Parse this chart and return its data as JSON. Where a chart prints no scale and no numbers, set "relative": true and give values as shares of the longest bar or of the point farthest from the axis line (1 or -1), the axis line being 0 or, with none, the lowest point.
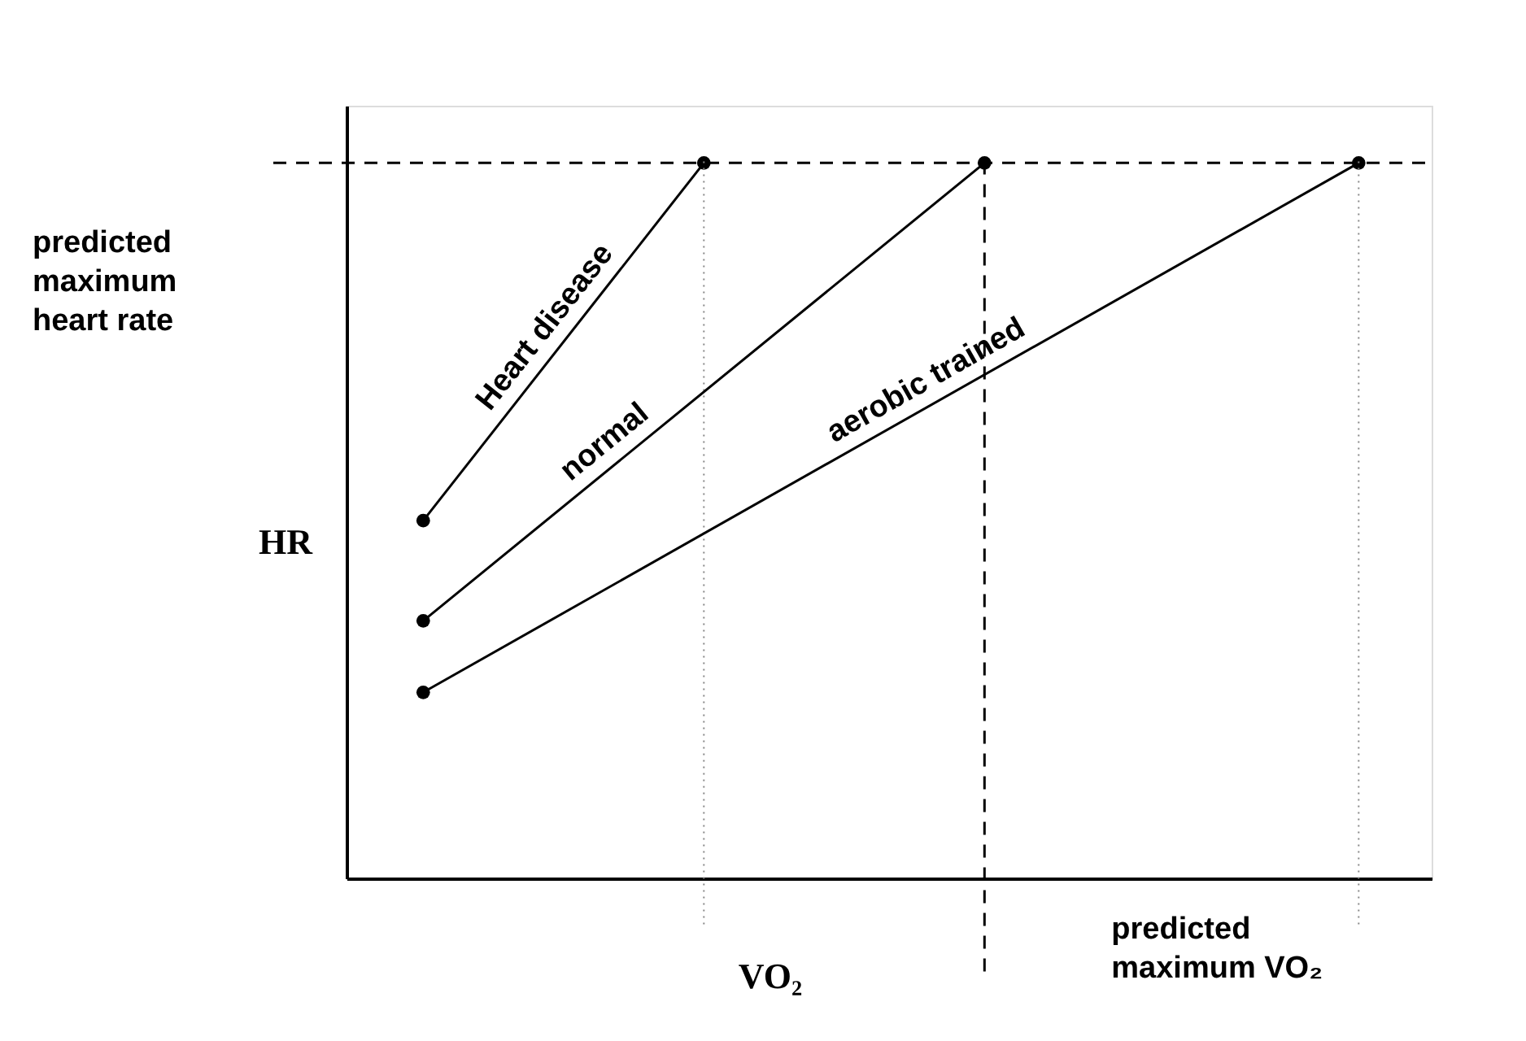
{
  "chart_data": {
    "type": "line",
    "relative": true,
    "xlabel": "VO₂",
    "ylabel": "HR",
    "grid": false,
    "marker": "circle",
    "line_style": "solid",
    "categories": [
      null,
      null,
      null,
      null,
      null,
      null,
      null,
      null,
      null,
      null,
      null
    ],
    "series": [
      {
        "name": "Heart disease",
        "color": "#000000",
        "values": [
          0.5,
          null,
          null,
          1,
          null,
          null,
          null,
          null,
          null,
          null,
          null
        ]
      },
      {
        "name": "normal",
        "color": "#000000",
        "values": [
          0.36,
          null,
          null,
          null,
          null,
          null,
          1,
          null,
          null,
          null,
          null
        ]
      },
      {
        "name": "aerobic trained",
        "color": "#000000",
        "values": [
          0.26,
          null,
          null,
          null,
          null,
          null,
          null,
          null,
          null,
          null,
          1
        ]
      }
    ],
    "ref_lines": [
      {
        "axis": "y",
        "value": 1,
        "line_style": "dashed",
        "color": "#000000"
      }
    ],
    "annotations": [
      "predicted maximum heart rate",
      "predicted maximum VO₂"
    ]
  }
}
